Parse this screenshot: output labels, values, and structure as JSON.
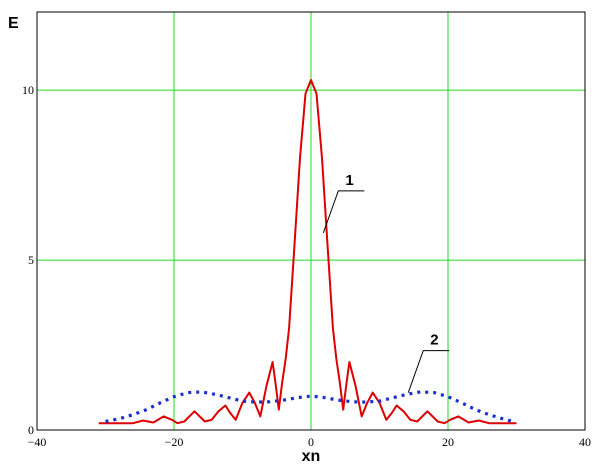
{
  "chart_data": {
    "type": "line",
    "title": "",
    "xlabel": "xn",
    "ylabel": "E",
    "xlim": [
      -40,
      40
    ],
    "ylim": [
      0,
      12.3
    ],
    "grid": true,
    "xticks": [
      -40,
      -20,
      0,
      20,
      40
    ],
    "xtick_labels": [
      "−40",
      "−20",
      "0",
      "20",
      "40"
    ],
    "yticks": [
      0,
      5,
      10
    ],
    "ytick_labels": [
      "0",
      "5",
      "10"
    ],
    "grid_color": "#22dd22",
    "series": [
      {
        "color": "#dd0000",
        "style": "solid",
        "x": [
          -31,
          -28,
          -26,
          -24.5,
          -23,
          -21.5,
          -20.3,
          -19.5,
          -18.5,
          -17,
          -15.5,
          -14.5,
          -13.5,
          -12.5,
          -11.8,
          -11,
          -10,
          -9,
          -8.2,
          -7.4,
          -6.5,
          -5.6,
          -5.2,
          -4.7,
          -4.2,
          -3.7,
          -3.2,
          -2.4,
          -1.6,
          -0.8,
          0,
          0.8,
          1.6,
          2.4,
          3.2,
          3.7,
          4.2,
          4.7,
          5.2,
          5.6,
          6.5,
          7.4,
          8.2,
          9,
          10,
          11,
          11.8,
          12.5,
          13.5,
          14.5,
          15.5,
          17,
          18.5,
          19.5,
          20.3,
          21.5,
          23,
          24.5,
          26,
          28,
          30
        ],
        "y": [
          0.2,
          0.2,
          0.2,
          0.28,
          0.22,
          0.4,
          0.3,
          0.2,
          0.25,
          0.55,
          0.25,
          0.3,
          0.55,
          0.72,
          0.5,
          0.3,
          0.8,
          1.1,
          0.8,
          0.4,
          1.3,
          2.0,
          1.4,
          0.6,
          1.4,
          2.1,
          3.0,
          5.5,
          8.0,
          9.9,
          10.3,
          9.9,
          8.0,
          5.5,
          3.0,
          2.1,
          1.4,
          0.6,
          1.4,
          2.0,
          1.3,
          0.4,
          0.8,
          1.1,
          0.8,
          0.3,
          0.5,
          0.72,
          0.55,
          0.3,
          0.25,
          0.55,
          0.25,
          0.2,
          0.3,
          0.4,
          0.22,
          0.28,
          0.2,
          0.2,
          0.2
        ]
      },
      {
        "color": "#1a2fcc",
        "style": "dotted",
        "x": [
          -30,
          -28,
          -26,
          -24,
          -22,
          -20,
          -18,
          -16,
          -14,
          -12,
          -10,
          -8,
          -6,
          -4,
          -2,
          0,
          2,
          4,
          6,
          8,
          10,
          12,
          14,
          16,
          18,
          20,
          22,
          24,
          26,
          28,
          29.5
        ],
        "y": [
          0.25,
          0.33,
          0.45,
          0.6,
          0.8,
          0.98,
          1.1,
          1.12,
          1.05,
          0.95,
          0.85,
          0.82,
          0.83,
          0.88,
          0.95,
          1.0,
          0.95,
          0.88,
          0.83,
          0.82,
          0.85,
          0.95,
          1.05,
          1.12,
          1.1,
          0.98,
          0.8,
          0.6,
          0.45,
          0.33,
          0.25
        ]
      }
    ],
    "annotations": [
      {
        "text": "1",
        "series": 0,
        "x": 1.8,
        "y": 5.8
      },
      {
        "text": "2",
        "series": 1,
        "x": 14.2,
        "y": 1.1
      }
    ]
  }
}
